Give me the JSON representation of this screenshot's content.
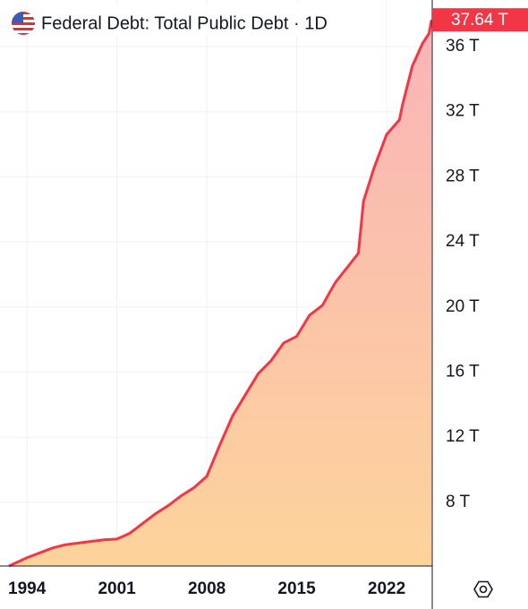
{
  "chart_data": {
    "type": "area",
    "title": "Federal Debt: Total Public Debt · 1D",
    "color": "#f23645",
    "fill_top": "#f9b4b9",
    "fill_bottom": "#fdd39a",
    "x": [
      1992.6,
      1994,
      1995,
      1996,
      1997,
      1998,
      1999,
      2000,
      2001,
      2002,
      2003,
      2004,
      2005,
      2006,
      2007,
      2008,
      2009,
      2010,
      2011,
      2012,
      2013,
      2014,
      2015,
      2016,
      2017,
      2018,
      2019,
      2019.8,
      2020.2,
      2021,
      2022,
      2023,
      2023.2,
      2024,
      2024.8,
      2025.3,
      2025.5
    ],
    "values": [
      4.09,
      4.6,
      4.9,
      5.2,
      5.4,
      5.5,
      5.6,
      5.7,
      5.75,
      6.1,
      6.7,
      7.3,
      7.8,
      8.4,
      8.9,
      9.6,
      11.5,
      13.3,
      14.6,
      15.9,
      16.7,
      17.8,
      18.2,
      19.5,
      20.1,
      21.5,
      22.5,
      23.3,
      26.5,
      28.5,
      30.6,
      31.5,
      32.3,
      34.8,
      36.2,
      36.8,
      37.64
    ],
    "current_value": {
      "value": 37.64,
      "label": "37.64 T"
    },
    "xlim": [
      1991.9,
      2025.55
    ],
    "ylim": [
      4.09,
      38.86
    ],
    "xticks": [
      1994,
      2001,
      2008,
      2015,
      2022
    ],
    "yticks": [
      {
        "value": 8,
        "label": "8 T"
      },
      {
        "value": 12,
        "label": "12 T"
      },
      {
        "value": 16,
        "label": "16 T"
      },
      {
        "value": 20,
        "label": "20 T"
      },
      {
        "value": 24,
        "label": "24 T"
      },
      {
        "value": 28,
        "label": "28 T"
      },
      {
        "value": 32,
        "label": "32 T"
      },
      {
        "value": 36,
        "label": "36 T"
      }
    ],
    "grid": true
  }
}
